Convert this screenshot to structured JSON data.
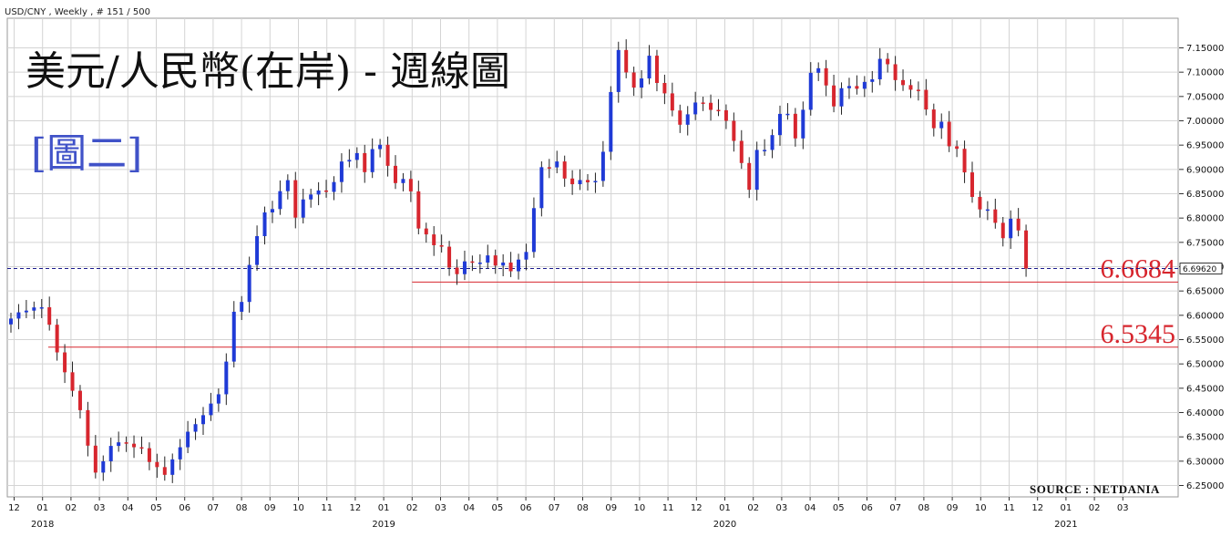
{
  "header": {
    "symbol_info": "USD/CNY , Weekly , # 151 / 500"
  },
  "title": "美元/人民幣(在岸) - 週線圖",
  "subtitle": "[圖二]",
  "source": "SOURCE : NETDANIA",
  "colors": {
    "up": "#1f3ad6",
    "down": "#d7262e",
    "grid": "#d4d4d4",
    "level": "#d7262e",
    "current": "#1a1a8c"
  },
  "chart_data": {
    "type": "candlestick",
    "title": "美元/人民幣(在岸) - 週線圖",
    "ylim": [
      6.23,
      7.2
    ],
    "y_ticks": [
      "6.25000",
      "6.30000",
      "6.35000",
      "6.40000",
      "6.45000",
      "6.50000",
      "6.55000",
      "6.60000",
      "6.65000",
      "6.70000",
      "6.75000",
      "6.80000",
      "6.85000",
      "6.90000",
      "6.95000",
      "7.00000",
      "7.05000",
      "7.10000",
      "7.15000"
    ],
    "x_tick_labels": [
      "12",
      "01",
      "02",
      "03",
      "04",
      "05",
      "06",
      "07",
      "08",
      "09",
      "10",
      "11",
      "12",
      "01",
      "02",
      "03",
      "04",
      "05",
      "06",
      "07",
      "08",
      "09",
      "10",
      "11",
      "12",
      "01",
      "02",
      "03",
      "04",
      "05",
      "06",
      "07",
      "08",
      "09",
      "10",
      "11",
      "12",
      "01",
      "02",
      "03"
    ],
    "year_labels": [
      {
        "label": "2018",
        "month_index": 1
      },
      {
        "label": "2019",
        "month_index": 13
      },
      {
        "label": "2020",
        "month_index": 25
      },
      {
        "label": "2021",
        "month_index": 37
      }
    ],
    "levels": [
      {
        "value": 6.6684,
        "label": "6.6684",
        "from_month": 14
      },
      {
        "value": 6.5345,
        "label": "6.5345",
        "from_month": 1.2
      }
    ],
    "current_price": {
      "value": 6.6962,
      "label": "6.69620"
    },
    "grid": true,
    "closes": [
      6.5933,
      6.6061,
      6.6096,
      6.6162,
      6.6165,
      6.5806,
      6.5237,
      6.4828,
      6.4448,
      6.4049,
      6.3319,
      6.2765,
      6.2998,
      6.3314,
      6.3388,
      6.3359,
      6.3287,
      6.3267,
      6.2983,
      6.2878,
      6.2719,
      6.3037,
      6.3286,
      6.3606,
      6.3761,
      6.3946,
      6.4185,
      6.4376,
      6.5048,
      6.6073,
      6.6275,
      6.7036,
      6.7628,
      6.8116,
      6.8185,
      6.8553,
      6.8779,
      6.8009,
      6.8383,
      6.8484,
      6.8567,
      6.8538,
      6.8741,
      6.9163,
      6.9196,
      6.9336,
      6.8944,
      6.9418,
      6.9507,
      6.9074,
      6.8719,
      6.8804,
      6.8549,
      6.7785,
      6.7664,
      6.7441,
      6.7411,
      6.6981,
      6.6846,
      6.7109,
      6.7083,
      6.7084,
      6.7232,
      6.7023,
      6.7085,
      6.6906,
      6.7146,
      6.7303,
      6.8204,
      6.9046,
      6.9042,
      6.9164,
      6.8813,
      6.8696,
      6.8782,
      6.8736,
      6.8763,
      6.9363,
      7.0592,
      7.1456,
      7.0994,
      7.0683,
      7.0871,
      7.1339,
      7.0778,
      7.0564,
      7.0212,
      6.9919,
      7.0133,
      7.0376,
      7.037,
      7.0225,
      7.0217,
      7.0,
      6.9587,
      6.9132,
      6.8582,
      6.9401,
      6.9401,
      6.9706,
      7.0142,
      7.0144,
      6.9638,
      7.0227,
      7.0987,
      7.1081,
      7.0727,
      7.0296,
      7.067,
      7.0715,
      7.0659,
      7.08,
      7.0853,
      7.1274,
      7.1163,
      7.0837,
      7.0734,
      7.0639,
      7.0637,
      7.0233,
      6.9848,
      6.9981,
      6.9476,
      6.9424,
      6.8939,
      6.8435,
      6.8178,
      6.8178,
      6.7902,
      6.7586,
      6.7987,
      6.7745,
      6.6962
    ]
  }
}
